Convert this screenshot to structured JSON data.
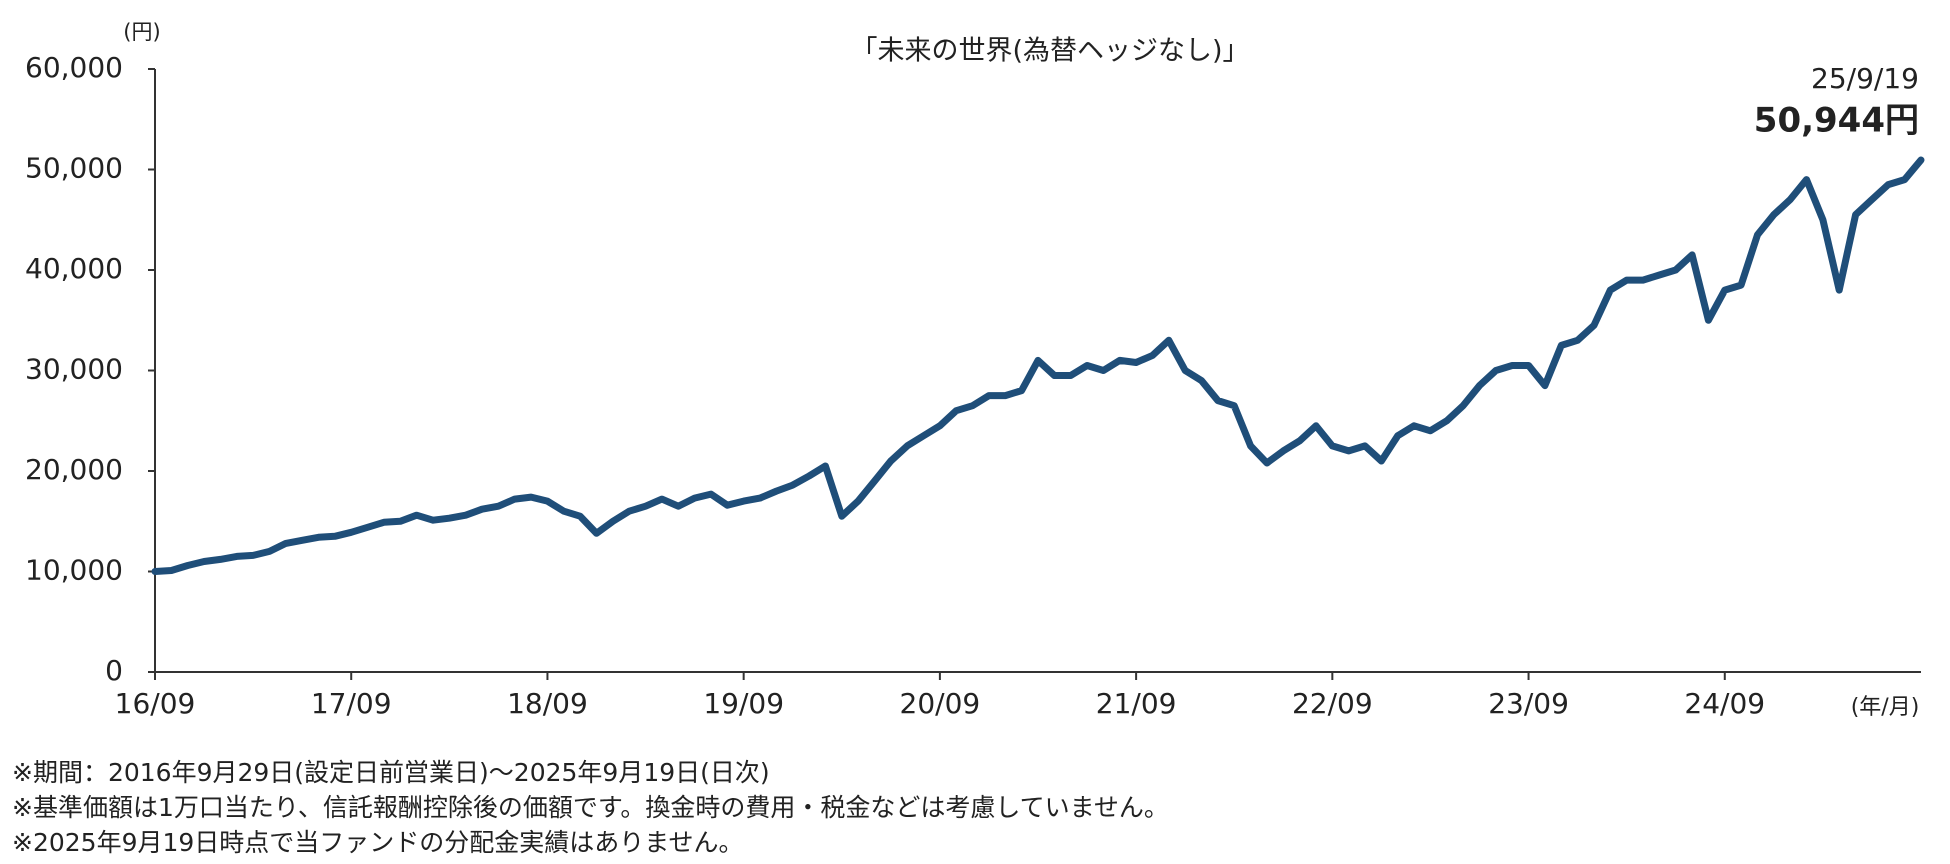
{
  "chart_data": {
    "type": "line",
    "title": "「未来の世界(為替ヘッジなし)」",
    "y_unit": "(円)",
    "x_unit": "(年/月)",
    "x": [
      "2016-09",
      "2016-10",
      "2016-11",
      "2016-12",
      "2017-01",
      "2017-02",
      "2017-03",
      "2017-04",
      "2017-05",
      "2017-06",
      "2017-07",
      "2017-08",
      "2017-09",
      "2017-10",
      "2017-11",
      "2017-12",
      "2018-01",
      "2018-02",
      "2018-03",
      "2018-04",
      "2018-05",
      "2018-06",
      "2018-07",
      "2018-08",
      "2018-09",
      "2018-10",
      "2018-11",
      "2018-12",
      "2019-01",
      "2019-02",
      "2019-03",
      "2019-04",
      "2019-05",
      "2019-06",
      "2019-07",
      "2019-08",
      "2019-09",
      "2019-10",
      "2019-11",
      "2019-12",
      "2020-01",
      "2020-02",
      "2020-03",
      "2020-04",
      "2020-05",
      "2020-06",
      "2020-07",
      "2020-08",
      "2020-09",
      "2020-10",
      "2020-11",
      "2020-12",
      "2021-01",
      "2021-02",
      "2021-03",
      "2021-04",
      "2021-05",
      "2021-06",
      "2021-07",
      "2021-08",
      "2021-09",
      "2021-10",
      "2021-11",
      "2021-12",
      "2022-01",
      "2022-02",
      "2022-03",
      "2022-04",
      "2022-05",
      "2022-06",
      "2022-07",
      "2022-08",
      "2022-09",
      "2022-10",
      "2022-11",
      "2022-12",
      "2023-01",
      "2023-02",
      "2023-03",
      "2023-04",
      "2023-05",
      "2023-06",
      "2023-07",
      "2023-08",
      "2023-09",
      "2023-10",
      "2023-11",
      "2023-12",
      "2024-01",
      "2024-02",
      "2024-03",
      "2024-04",
      "2024-05",
      "2024-06",
      "2024-07",
      "2024-08",
      "2024-09",
      "2024-10",
      "2024-11",
      "2024-12",
      "2025-01",
      "2025-02",
      "2025-03",
      "2025-04",
      "2025-05",
      "2025-06",
      "2025-07",
      "2025-08",
      "2025-09"
    ],
    "series": [
      {
        "name": "未来の世界(為替ヘッジなし)",
        "color": "#1f4e79",
        "values": [
          10000,
          10100,
          10600,
          11000,
          11200,
          11500,
          11600,
          12000,
          12800,
          13100,
          13400,
          13500,
          13900,
          14400,
          14900,
          15000,
          15600,
          15100,
          15300,
          15600,
          16200,
          16500,
          17200,
          17400,
          17000,
          16000,
          15500,
          13800,
          15000,
          16000,
          16500,
          17200,
          16500,
          17300,
          17700,
          16600,
          17000,
          17300,
          18000,
          18600,
          19500,
          20500,
          15500,
          17000,
          19000,
          21000,
          22500,
          23500,
          24500,
          26000,
          26500,
          27500,
          27500,
          28000,
          31000,
          29500,
          29500,
          30500,
          30000,
          31000,
          30800,
          31500,
          33000,
          30000,
          29000,
          27000,
          26500,
          22500,
          20800,
          22000,
          23000,
          24500,
          22500,
          22000,
          22500,
          21000,
          23500,
          24500,
          24000,
          25000,
          26500,
          28500,
          30000,
          30500,
          30500,
          28500,
          32500,
          33000,
          34500,
          38000,
          39000,
          39000,
          39500,
          40000,
          41500,
          35000,
          38000,
          38500,
          43500,
          45500,
          47000,
          49000,
          45000,
          38000,
          45500,
          47000,
          48500,
          49000,
          50944
        ]
      }
    ],
    "annotation": {
      "date": "25/9/19",
      "label": "50,944円"
    },
    "xlim": [
      "2016-09",
      "2025-09"
    ],
    "xticks": [
      {
        "value": "2016-09",
        "label": "16/09"
      },
      {
        "value": "2017-09",
        "label": "17/09"
      },
      {
        "value": "2018-09",
        "label": "18/09"
      },
      {
        "value": "2019-09",
        "label": "19/09"
      },
      {
        "value": "2020-09",
        "label": "20/09"
      },
      {
        "value": "2021-09",
        "label": "21/09"
      },
      {
        "value": "2022-09",
        "label": "22/09"
      },
      {
        "value": "2023-09",
        "label": "23/09"
      },
      {
        "value": "2024-09",
        "label": "24/09"
      }
    ],
    "ylim": [
      0,
      60000
    ],
    "yticks": [
      0,
      {
        "value": 10000,
        "label": "10,000"
      },
      {
        "value": 20000,
        "label": "20,000"
      },
      {
        "value": 30000,
        "label": "30,000"
      },
      {
        "value": 40000,
        "label": "40,000"
      },
      {
        "value": 50000,
        "label": "50,000"
      },
      {
        "value": 60000,
        "label": "60,000"
      }
    ],
    "grid": false,
    "notes": [
      "※期間：2016年9月29日(設定日前営業日)～2025年9月19日(日次)",
      "※基準価額は1万口当たり、信託報酬控除後の価額です。換金時の費用・税金などは考慮していません。",
      "※2025年9月19日時点で当ファンドの分配金実績はありません。"
    ]
  }
}
